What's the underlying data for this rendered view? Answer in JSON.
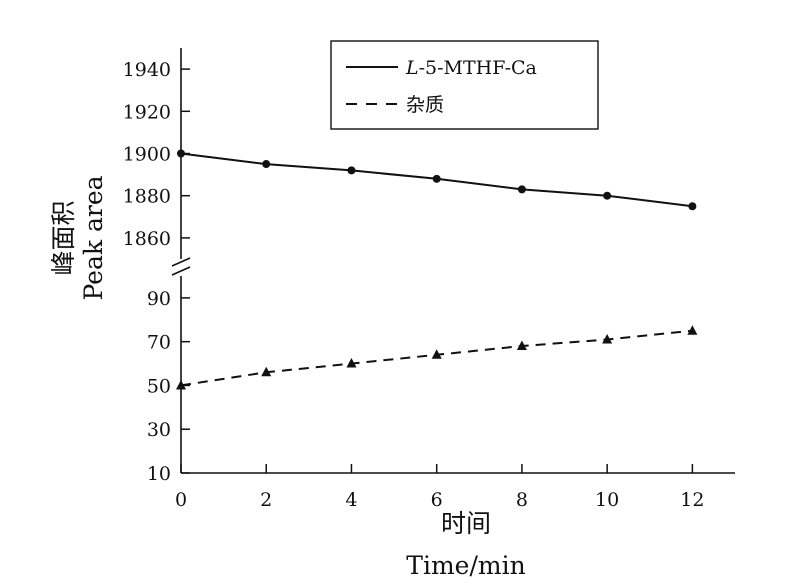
{
  "chart_data": {
    "type": "line",
    "title": "",
    "xlabel_cn": "时间",
    "xlabel_en": "Time/min",
    "ylabel_cn": "峰面积",
    "ylabel_en": "Peak  area",
    "x": [
      0,
      2,
      4,
      6,
      8,
      10,
      12
    ],
    "xticks": [
      "0",
      "2",
      "4",
      "6",
      "8",
      "10",
      "12"
    ],
    "xlim": [
      0,
      13
    ],
    "upper_axis": {
      "ylim": [
        1850,
        1950
      ],
      "yticks": [
        "1940",
        "1920",
        "1900",
        "1880",
        "1860"
      ],
      "tick_values": [
        1940,
        1920,
        1900,
        1880,
        1860
      ]
    },
    "lower_axis": {
      "ylim": [
        10,
        100
      ],
      "yticks": [
        "90",
        "70",
        "50",
        "30",
        "10"
      ],
      "tick_values": [
        90,
        70,
        50,
        30,
        10
      ]
    },
    "axis_break": true,
    "grid": false,
    "legend_position": "top-right",
    "series": [
      {
        "name_prefix": "L",
        "name_suffix": "-5-MTHF-Ca",
        "values": [
          1900,
          1895,
          1892,
          1888,
          1883,
          1880,
          1875
        ],
        "axis": "upper",
        "line": "solid",
        "marker": "circle"
      },
      {
        "name": "杂质",
        "values": [
          50,
          56,
          60,
          64,
          68,
          71,
          75
        ],
        "axis": "lower",
        "line": "dashed",
        "marker": "triangle"
      }
    ]
  }
}
